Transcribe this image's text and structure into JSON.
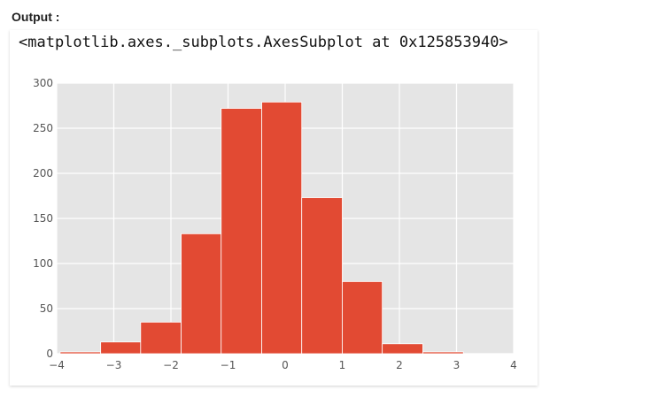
{
  "header": {
    "label": "Output :"
  },
  "cell": {
    "repr_text": "<matplotlib.axes._subplots.AxesSubplot at 0x125853940>"
  },
  "colors": {
    "bar": "#e24a33",
    "plot_bg": "#e5e5e5",
    "grid": "#ffffff"
  },
  "chart_data": {
    "type": "bar",
    "title": "",
    "xlabel": "",
    "ylabel": "",
    "xlim": [
      -4,
      4
    ],
    "ylim": [
      0,
      300
    ],
    "grid": true,
    "xticks": [
      -4,
      -3,
      -2,
      -1,
      0,
      1,
      2,
      3,
      4
    ],
    "yticks": [
      0,
      50,
      100,
      150,
      200,
      250,
      300
    ],
    "bin_edges": [
      -3.94,
      -3.23,
      -2.53,
      -1.82,
      -1.12,
      -0.41,
      0.29,
      1.0,
      1.7,
      2.41,
      3.12
    ],
    "counts": [
      2,
      13,
      35,
      133,
      272,
      279,
      173,
      80,
      11,
      2
    ]
  }
}
